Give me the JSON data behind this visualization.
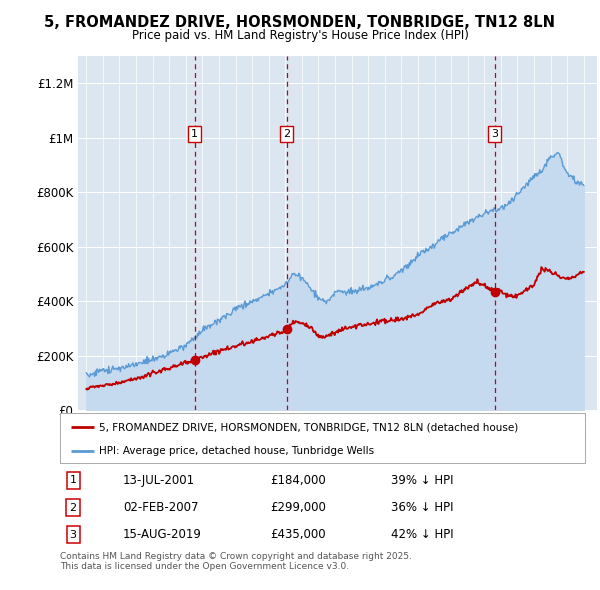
{
  "title": "5, FROMANDEZ DRIVE, HORSMONDEN, TONBRIDGE, TN12 8LN",
  "subtitle": "Price paid vs. HM Land Registry's House Price Index (HPI)",
  "hpi_color": "#5b9bd5",
  "hpi_fill_color": "#c5d9ef",
  "price_color": "#c00000",
  "dashed_color": "#cc0000",
  "bg_color": "#dce6f1",
  "purchases": [
    {
      "label": "1",
      "date_num": 2001.54,
      "price": 184000
    },
    {
      "label": "2",
      "date_num": 2007.09,
      "price": 299000
    },
    {
      "label": "3",
      "date_num": 2019.62,
      "price": 435000
    }
  ],
  "purchase_table": [
    {
      "num": "1",
      "date": "13-JUL-2001",
      "price": "£184,000",
      "hpi": "39% ↓ HPI"
    },
    {
      "num": "2",
      "date": "02-FEB-2007",
      "price": "£299,000",
      "hpi": "36% ↓ HPI"
    },
    {
      "num": "3",
      "date": "15-AUG-2019",
      "price": "£435,000",
      "hpi": "42% ↓ HPI"
    }
  ],
  "legend_entries": [
    "5, FROMANDEZ DRIVE, HORSMONDEN, TONBRIDGE, TN12 8LN (detached house)",
    "HPI: Average price, detached house, Tunbridge Wells"
  ],
  "footer": "Contains HM Land Registry data © Crown copyright and database right 2025.\nThis data is licensed under the Open Government Licence v3.0.",
  "ylim": [
    0,
    1300000
  ],
  "yticks": [
    0,
    200000,
    400000,
    600000,
    800000,
    1000000,
    1200000
  ],
  "ytick_labels": [
    "£0",
    "£200K",
    "£400K",
    "£600K",
    "£800K",
    "£1M",
    "£1.2M"
  ],
  "xlim_start": 1994.5,
  "xlim_end": 2025.8
}
